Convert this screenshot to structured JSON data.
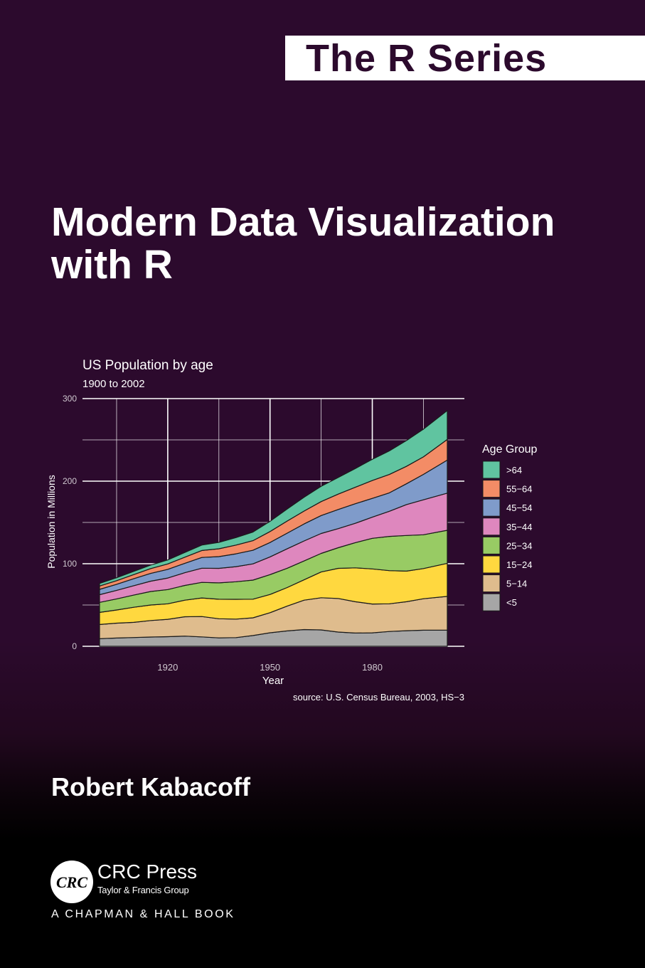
{
  "series": {
    "label": "The R Series"
  },
  "title": {
    "line1": "Modern Data Visualization",
    "line2": "with R"
  },
  "author": "Robert Kabacoff",
  "publisher": {
    "name": "CRC Press",
    "subtitle": "Taylor & Francis Group",
    "logo_text": "CRC",
    "imprint": "A CHAPMAN & HALL BOOK"
  },
  "colors": {
    "background": "#2c0a2d",
    "title_text": "#ffffff",
    "series_box": "#ffffff",
    "series_text": "#2c0a2d"
  },
  "chart_data": {
    "type": "area",
    "stacked": true,
    "title": "US Population by age",
    "subtitle": "1900 to 2002",
    "xlabel": "Year",
    "ylabel": "Population in Millions",
    "caption": "source: U.S. Census Bureau, 2003, HS−3",
    "xlim": [
      1900,
      2002
    ],
    "ylim": [
      0,
      300
    ],
    "x_ticks": [
      1920,
      1950,
      1980
    ],
    "y_ticks": [
      0,
      100,
      200,
      300
    ],
    "grid": true,
    "legend_title": "Age Group",
    "legend_position": "right",
    "x": [
      1900,
      1905,
      1910,
      1915,
      1920,
      1925,
      1930,
      1935,
      1940,
      1945,
      1950,
      1955,
      1960,
      1965,
      1970,
      1975,
      1980,
      1985,
      1990,
      1995,
      2002
    ],
    "series": [
      {
        "name": "<5",
        "color": "#a6a6a6",
        "values": [
          9.2,
          10.0,
          10.6,
          11.2,
          11.6,
          12.3,
          11.4,
          10.2,
          10.5,
          13.0,
          16.4,
          18.6,
          20.3,
          19.8,
          17.2,
          16.0,
          16.3,
          17.9,
          18.9,
          19.5,
          19.6
        ]
      },
      {
        "name": "5−14",
        "color": "#dfbc8d",
        "values": [
          17.2,
          18.0,
          18.4,
          20.0,
          21.1,
          23.5,
          24.6,
          23.2,
          22.4,
          21.5,
          24.3,
          30.0,
          35.6,
          39.0,
          40.7,
          38.0,
          34.9,
          33.6,
          35.1,
          38.1,
          40.8
        ]
      },
      {
        "name": "15−24",
        "color": "#ffd83f",
        "values": [
          14.6,
          16.0,
          18.2,
          18.8,
          18.8,
          20.1,
          22.5,
          23.6,
          24.0,
          22.6,
          22.1,
          22.5,
          24.6,
          31.2,
          36.5,
          41.0,
          42.5,
          40.1,
          37.0,
          36.5,
          40.1
        ]
      },
      {
        "name": "25−34",
        "color": "#98cb64",
        "values": [
          12.2,
          13.4,
          14.8,
          16.4,
          17.2,
          17.8,
          18.9,
          19.8,
          21.3,
          23.1,
          24.0,
          23.4,
          22.9,
          22.5,
          25.0,
          30.5,
          37.1,
          41.5,
          43.2,
          41.0,
          40.0
        ]
      },
      {
        "name": "35−44",
        "color": "#de87be",
        "values": [
          9.3,
          10.4,
          11.4,
          12.5,
          14.0,
          15.4,
          17.2,
          17.6,
          18.3,
          19.6,
          21.5,
          23.5,
          24.2,
          24.1,
          23.1,
          23.5,
          25.6,
          30.4,
          37.4,
          42.3,
          45.0
        ]
      },
      {
        "name": "45−54",
        "color": "#7f9bca",
        "values": [
          6.5,
          7.3,
          8.4,
          9.4,
          10.5,
          11.4,
          13.0,
          14.2,
          15.5,
          16.5,
          17.4,
          19.0,
          20.6,
          21.8,
          23.2,
          23.7,
          22.7,
          22.4,
          25.2,
          30.8,
          40.0
        ]
      },
      {
        "name": "55−64",
        "color": "#f38c66",
        "values": [
          4.0,
          4.4,
          5.0,
          5.8,
          6.5,
          7.4,
          8.4,
          9.5,
          10.6,
          11.6,
          13.3,
          14.6,
          15.6,
          16.9,
          18.6,
          19.9,
          21.7,
          22.2,
          21.1,
          21.2,
          25.0
        ]
      },
      {
        "name": ">64",
        "color": "#60c4a0",
        "values": [
          3.1,
          3.5,
          3.9,
          4.3,
          4.9,
          5.7,
          6.6,
          7.8,
          9.0,
          10.5,
          12.3,
          14.5,
          16.7,
          18.5,
          20.1,
          22.7,
          25.7,
          28.5,
          31.2,
          33.5,
          35.0
        ]
      }
    ]
  }
}
